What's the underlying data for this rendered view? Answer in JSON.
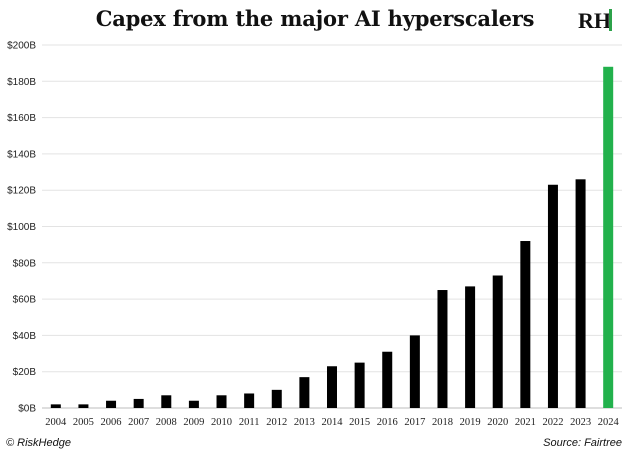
{
  "chart_data": {
    "type": "bar",
    "title": "Capex from the major AI hyperscalers",
    "xlabel": "",
    "ylabel": "",
    "categories": [
      "2004",
      "2005",
      "2006",
      "2007",
      "2008",
      "2009",
      "2010",
      "2011",
      "2012",
      "2013",
      "2014",
      "2015",
      "2016",
      "2017",
      "2018",
      "2019",
      "2020",
      "2021",
      "2022",
      "2023",
      "2024"
    ],
    "values": [
      2,
      2,
      4,
      5,
      7,
      4,
      7,
      8,
      10,
      17,
      23,
      25,
      31,
      40,
      65,
      67,
      73,
      92,
      123,
      126,
      188
    ],
    "ylim": [
      0,
      200
    ],
    "yticks": [
      "$0B",
      "$20B",
      "$40B",
      "$60B",
      "$80B",
      "$100B",
      "$120B",
      "$140B",
      "$160B",
      "$180B",
      "$200B"
    ],
    "bar_color": "#000000",
    "highlight_color": "#22b14c",
    "highlight_category": "2024",
    "grid": true
  },
  "logo": {
    "text": "RH"
  },
  "footer": {
    "left": "© RiskHedge",
    "right": "Source: Fairtree"
  }
}
